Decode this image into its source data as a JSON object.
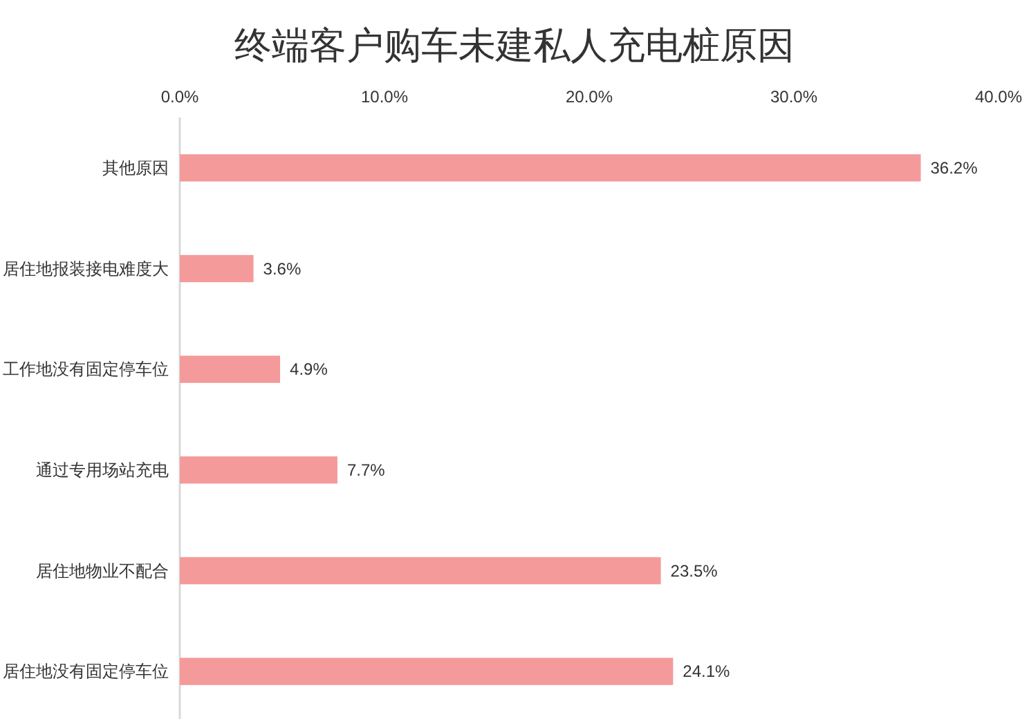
{
  "chart_data": {
    "type": "bar",
    "orientation": "horizontal",
    "title": "终端客户购车未建私人充电桩原因",
    "categories": [
      "其他原因",
      "居住地报装接电难度大",
      "工作地没有固定停车位",
      "通过专用场站充电",
      "居住地物业不配合",
      "居住地没有固定停车位"
    ],
    "values": [
      36.2,
      3.6,
      4.9,
      7.7,
      23.5,
      24.1
    ],
    "value_labels": [
      "36.2%",
      "3.6%",
      "4.9%",
      "7.7%",
      "23.5%",
      "24.1%"
    ],
    "color": "#f49a9a",
    "xlim": [
      0,
      40
    ],
    "xticks": [
      {
        "value": 0,
        "label": "0.0%"
      },
      {
        "value": 10,
        "label": "10.0%"
      },
      {
        "value": 20,
        "label": "20.0%"
      },
      {
        "value": 30,
        "label": "30.0%"
      },
      {
        "value": 40,
        "label": "40.0%"
      }
    ]
  }
}
